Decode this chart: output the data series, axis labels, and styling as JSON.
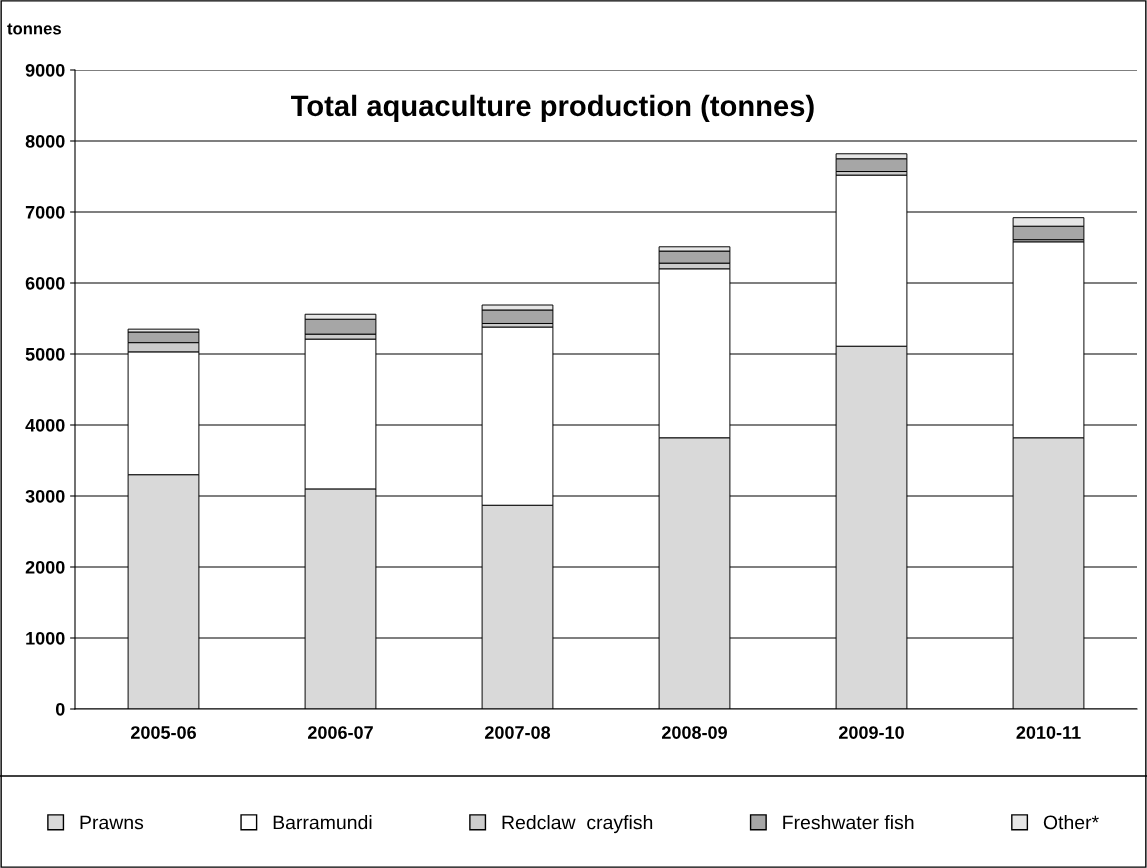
{
  "chart_data": {
    "type": "bar",
    "title": "Total aquaculture production (tonnes)",
    "ylabel": "tonnes",
    "categories": [
      "2005-06",
      "2006-07",
      "2007-08",
      "2008-09",
      "2009-10",
      "2010-11"
    ],
    "stacked": true,
    "series": [
      {
        "name": "Prawns",
        "color": "#d9d9d9",
        "values": [
          3300,
          3100,
          2870,
          3820,
          5110,
          3820
        ]
      },
      {
        "name": "Barramundi",
        "color": "#ffffff",
        "values": [
          1730,
          2110,
          2510,
          2380,
          2410,
          2760
        ]
      },
      {
        "name": "Redclaw  crayfish",
        "color": "#cccccc",
        "values": [
          130,
          70,
          50,
          80,
          50,
          30
        ]
      },
      {
        "name": "Freshwater fish",
        "color": "#a6a6a6",
        "values": [
          150,
          210,
          190,
          170,
          180,
          190
        ]
      },
      {
        "name": "Other*",
        "color": "#e6e6e6",
        "values": [
          40,
          70,
          70,
          60,
          70,
          120
        ]
      }
    ],
    "ylim": [
      0,
      9000
    ],
    "yticks": [
      0,
      1000,
      2000,
      3000,
      4000,
      5000,
      6000,
      7000,
      8000,
      9000
    ],
    "grid": "y",
    "legend": "bottom"
  }
}
